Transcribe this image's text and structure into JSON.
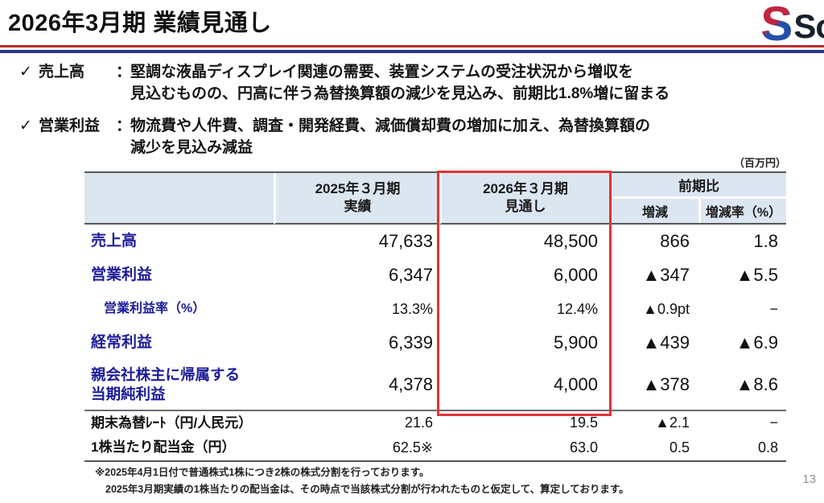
{
  "header": {
    "title": "2026年3月期 業績見通し",
    "logo_mark": "S",
    "logo_text": "So"
  },
  "bullets": [
    {
      "check": "✓",
      "label": "売上高",
      "colon": "：",
      "line1": "堅調な液晶ディスプレイ関連の需要、装置システムの受注状況から増収を",
      "line2": "見込むものの、円高に伴う為替換算額の減少を見込み、前期比1.8%増に留まる"
    },
    {
      "check": "✓",
      "label": "営業利益",
      "colon": "：",
      "line1": "物流費や人件費、調査・開発経費、減価償却費の増加に加え、為替換算額の",
      "line2": "減少を見込み減益"
    }
  ],
  "unit_note": "（百万円）",
  "table": {
    "col_headers": {
      "col2025": "2025年３月期\n実績",
      "col2026": "2026年３月期\n見通し",
      "group": "前期比",
      "diff": "増減",
      "rate": "増減率（%）"
    },
    "rows": [
      {
        "label": "売上高",
        "v2025": "47,633",
        "v2026": "48,500",
        "diff": "866",
        "rate": "1.8"
      },
      {
        "label": "営業利益",
        "v2025": "6,347",
        "v2026": "6,000",
        "diff": "▲347",
        "rate": "▲5.5"
      },
      {
        "label": "営業利益率（%）",
        "v2025": "13.3%",
        "v2026": "12.4%",
        "diff": "▲0.9pt",
        "rate": "−"
      },
      {
        "label": "経常利益",
        "v2025": "6,339",
        "v2026": "5,900",
        "diff": "▲439",
        "rate": "▲6.9"
      },
      {
        "label": "親会社株主に帰属する\n当期純利益",
        "v2025": "4,378",
        "v2026": "4,000",
        "diff": "▲378",
        "rate": "▲8.6"
      }
    ],
    "sub_rows": [
      {
        "label": "期末為替ﾚｰﾄ（円/人民元）",
        "v2025": "21.6",
        "v2026": "19.5",
        "diff": "▲2.1",
        "rate": "−"
      },
      {
        "label": "1株当たり配当金（円）",
        "v2025": "62.5※",
        "v2026": "63.0",
        "diff": "0.5",
        "rate": "0.8"
      }
    ]
  },
  "footnotes": {
    "line1": "※2025年4月1日付で普通株式1株につき2株の株式分割を行っております。",
    "line2": "2025年3月期実績の1株当たりの配当金は、その時点で当該株式分割が行われたものと仮定して、算定しております。"
  },
  "page_number": "13",
  "colors": {
    "accent-red": "#e23333",
    "rule-red": "#bf2b30",
    "rule-blue": "#27348b",
    "head-fill": "#dce6f1",
    "label-navy": "#1c1c99",
    "logo-red": "#c22540",
    "logo-blue": "#2350a8"
  }
}
